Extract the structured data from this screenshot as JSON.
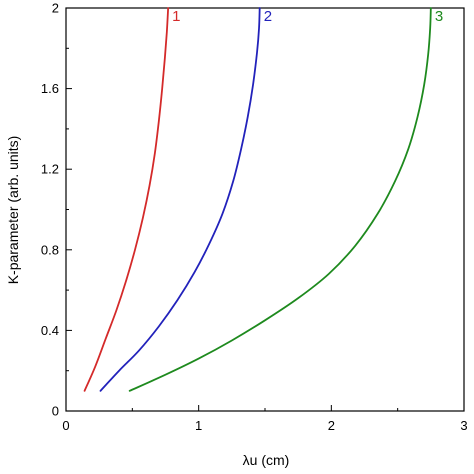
{
  "chart_data": {
    "type": "line",
    "xlabel": "λu (cm)",
    "ylabel": "K-parameter (arb. units)",
    "xlim": [
      0,
      3
    ],
    "ylim": [
      0,
      2
    ],
    "x_ticks": [
      "0",
      "1",
      "2",
      "3"
    ],
    "y_ticks": [
      "0",
      "0.4",
      "0.8",
      "1.2",
      "1.6",
      "2"
    ],
    "grid": false,
    "legend": "none",
    "series": [
      {
        "name": "1",
        "color": "#d42a2a",
        "x": [
          0.14,
          0.22,
          0.3,
          0.38,
          0.45,
          0.52,
          0.58,
          0.63,
          0.67,
          0.7,
          0.725,
          0.745,
          0.76,
          0.77
        ],
        "y": [
          0.1,
          0.22,
          0.36,
          0.5,
          0.64,
          0.8,
          0.96,
          1.12,
          1.28,
          1.44,
          1.6,
          1.75,
          1.88,
          2.0
        ]
      },
      {
        "name": "2",
        "color": "#2222bb",
        "x": [
          0.26,
          0.4,
          0.55,
          0.7,
          0.84,
          0.97,
          1.08,
          1.18,
          1.26,
          1.32,
          1.37,
          1.41,
          1.44,
          1.455,
          1.46
        ],
        "y": [
          0.1,
          0.2,
          0.3,
          0.42,
          0.55,
          0.69,
          0.83,
          0.98,
          1.14,
          1.3,
          1.46,
          1.62,
          1.78,
          1.9,
          2.0
        ]
      },
      {
        "name": "3",
        "color": "#1e8a1e",
        "x": [
          0.48,
          0.75,
          1.0,
          1.25,
          1.5,
          1.75,
          1.98,
          2.18,
          2.35,
          2.48,
          2.58,
          2.65,
          2.7,
          2.73,
          2.745,
          2.75
        ],
        "y": [
          0.1,
          0.18,
          0.26,
          0.35,
          0.45,
          0.56,
          0.68,
          0.82,
          0.98,
          1.14,
          1.3,
          1.46,
          1.62,
          1.77,
          1.9,
          2.0
        ]
      }
    ]
  }
}
